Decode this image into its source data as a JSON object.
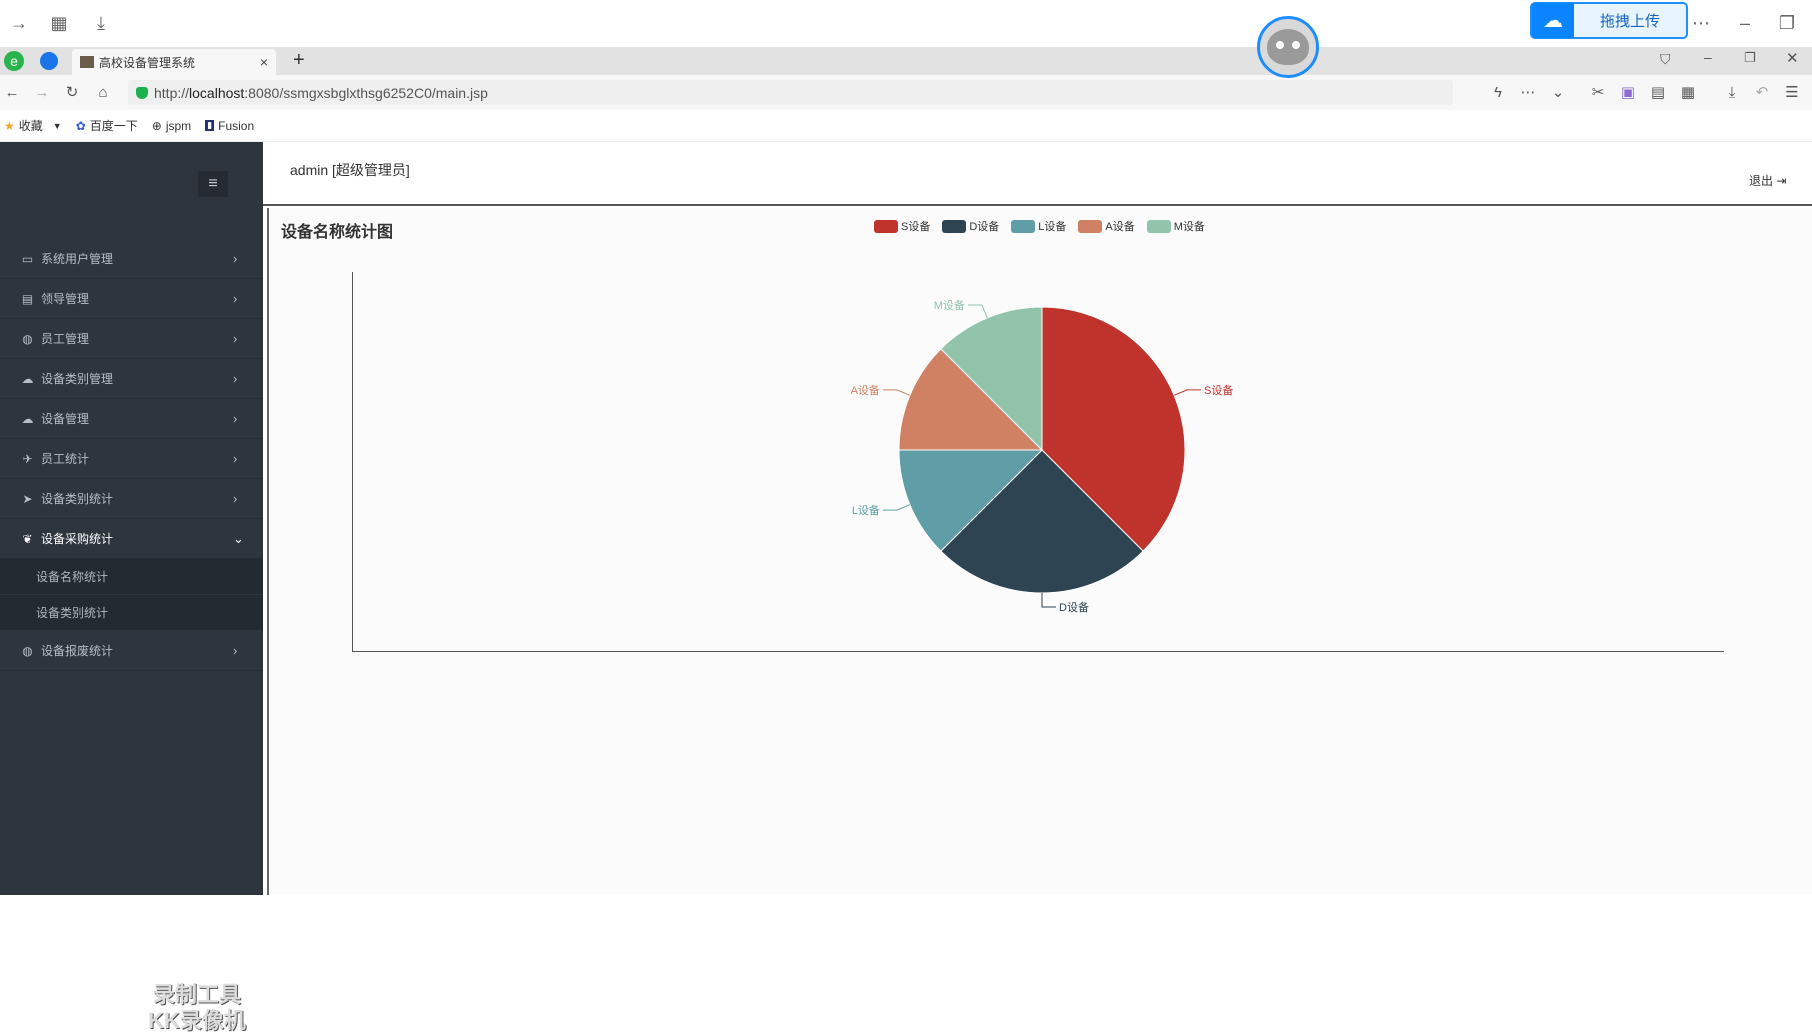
{
  "recorder": {
    "upload_label": "拖拽上传"
  },
  "browser": {
    "tab_title": "高校设备管理系统",
    "url_prefix": "http://",
    "url_host": "localhost",
    "url_rest": ":8080/ssmgxsbglxthsg6252C0/main.jsp",
    "bookmarks": [
      "收藏",
      "百度一下",
      "jspm",
      "Fusion"
    ]
  },
  "sidebar": {
    "items": [
      {
        "label": "系统用户管理",
        "icon": "car-icon"
      },
      {
        "label": "领导管理",
        "icon": "inbox-icon"
      },
      {
        "label": "员工管理",
        "icon": "globe-icon"
      },
      {
        "label": "设备类别管理",
        "icon": "cloud-icon"
      },
      {
        "label": "设备管理",
        "icon": "cloud-icon"
      },
      {
        "label": "员工统计",
        "icon": "plane-icon"
      },
      {
        "label": "设备类别统计",
        "icon": "send-icon"
      },
      {
        "label": "设备采购统计",
        "icon": "leaf-icon",
        "expanded": true
      },
      {
        "label": "设备报废统计",
        "icon": "globe-icon"
      }
    ],
    "subitems": [
      "设备名称统计",
      "设备类别统计"
    ],
    "watermark_line1": "录制工具",
    "watermark_line2": "KK录像机"
  },
  "header": {
    "user": "admin [超级管理员]",
    "logout": "退出"
  },
  "chart_data": {
    "type": "pie",
    "title": "设备名称统计图",
    "categories": [
      "S设备",
      "D设备",
      "L设备",
      "A设备",
      "M设备"
    ],
    "values": [
      3,
      2,
      1,
      1,
      1
    ],
    "colors": [
      "#c0322c",
      "#2f4453",
      "#5f9ea6",
      "#d08164",
      "#92c4ab"
    ],
    "legend_position": "top-center"
  }
}
